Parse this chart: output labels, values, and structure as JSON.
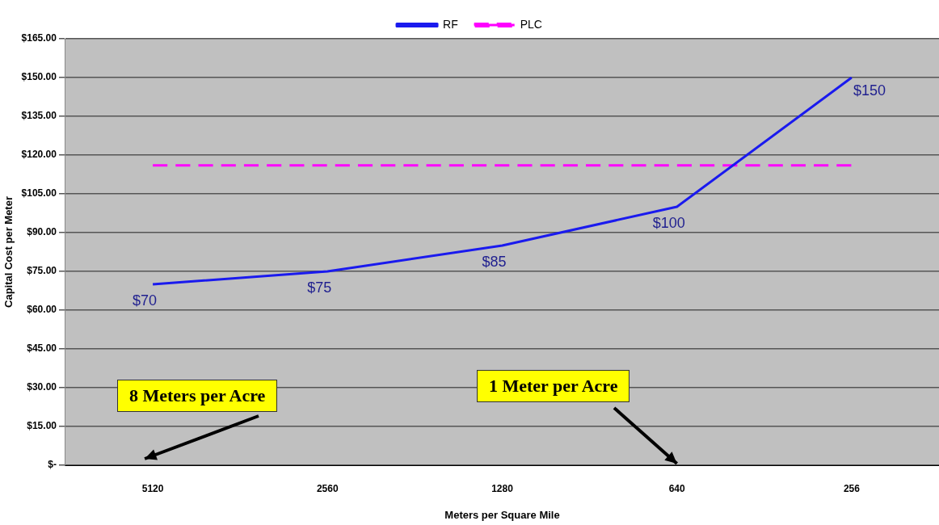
{
  "chart_data": {
    "type": "line",
    "xlabel": "Meters per Square Mile",
    "ylabel": "Capital Cost per Meter",
    "categories": [
      "5120",
      "2560",
      "1280",
      "640",
      "256"
    ],
    "series": [
      {
        "name": "RF",
        "color": "#1a1aee",
        "values": [
          70,
          75,
          85,
          100,
          150
        ],
        "value_labels": [
          "$70",
          "$75",
          "$85",
          "$100",
          "$150"
        ]
      },
      {
        "name": "PLC",
        "color": "#ff00ff",
        "values": [
          116,
          116,
          116,
          116,
          116
        ],
        "line_style": "dashed"
      }
    ],
    "ylim": [
      0,
      165
    ],
    "yticks": [
      {
        "value": 0,
        "label": "$-"
      },
      {
        "value": 15,
        "label": "$15.00"
      },
      {
        "value": 30,
        "label": "$30.00"
      },
      {
        "value": 45,
        "label": "$45.00"
      },
      {
        "value": 60,
        "label": "$60.00"
      },
      {
        "value": 75,
        "label": "$75.00"
      },
      {
        "value": 90,
        "label": "$90.00"
      },
      {
        "value": 105,
        "label": "$105.00"
      },
      {
        "value": 120,
        "label": "$120.00"
      },
      {
        "value": 135,
        "label": "$135.00"
      },
      {
        "value": 150,
        "label": "$150.00"
      },
      {
        "value": 165,
        "label": "$165.00"
      }
    ],
    "grid": "y",
    "legend": "top",
    "marker": "none",
    "annotations": [
      "8 Meters per Acre",
      "1 Meter per Acre"
    ]
  }
}
